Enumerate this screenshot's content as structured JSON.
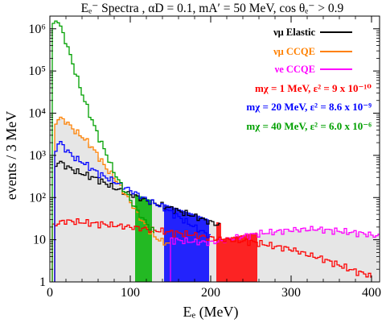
{
  "chart_data": {
    "type": "line",
    "title": "Eₑ⁻ Spectra ,  αD = 0.1,  mA′ = 50 MeV,   cos θₑ⁻ > 0.9",
    "xlabel": "Eₑ (MeV)",
    "ylabel": "events / 3 MeV",
    "xlim": [
      0,
      410
    ],
    "ylim": [
      1,
      2000000
    ],
    "yscale": "log",
    "x_ticks": [
      {
        "value": 0,
        "label": "0"
      },
      {
        "value": 100,
        "label": "100"
      },
      {
        "value": 200,
        "label": "200"
      },
      {
        "value": 300,
        "label": "300"
      },
      {
        "value": 400,
        "label": "400"
      }
    ],
    "y_ticks": [
      {
        "value": 1,
        "label": "1"
      },
      {
        "value": 10,
        "label": "10"
      },
      {
        "value": 100,
        "label": "10²"
      },
      {
        "value": 1000,
        "label": "10³"
      },
      {
        "value": 10000,
        "label": "10⁴"
      },
      {
        "value": 100000,
        "label": "10⁵"
      },
      {
        "value": 1000000,
        "label": "10⁶"
      }
    ],
    "background_series": [
      {
        "name": "νμ Elastic",
        "color": "#000000",
        "x": [
          6,
          9,
          12,
          15,
          20,
          30,
          40,
          50,
          60,
          80,
          100,
          120,
          140,
          160,
          180,
          200,
          212
        ],
        "values": [
          500,
          700,
          700,
          650,
          560,
          440,
          370,
          320,
          270,
          170,
          120,
          85,
          65,
          48,
          36,
          26,
          22
        ]
      },
      {
        "name": "νμ CCQE",
        "color": "#ff8000",
        "x": [
          6,
          9,
          12,
          15,
          20,
          30,
          40,
          50,
          60,
          70,
          80,
          90,
          100,
          110,
          120,
          130,
          140,
          150
        ],
        "values": [
          5000,
          7000,
          8000,
          7000,
          6500,
          4000,
          2800,
          1800,
          1000,
          500,
          300,
          160,
          80,
          40,
          20,
          12,
          9,
          8
        ]
      },
      {
        "name": "νe CCQE",
        "color": "#ff00ff",
        "x": [
          150,
          180,
          200,
          230,
          260,
          300,
          330,
          360,
          390,
          410
        ],
        "values": [
          10,
          9,
          8.5,
          11,
          14,
          17,
          18,
          16,
          14,
          12
        ]
      }
    ],
    "signal_series": [
      {
        "name": "mχ = 1 MeV,   ε² = 9 x 10⁻¹⁰",
        "color": "#ff0000",
        "fill": "#ff0000",
        "fill_range": [
          207,
          258
        ],
        "x": [
          3,
          10,
          20,
          40,
          60,
          80,
          100,
          120,
          150,
          180,
          200,
          220,
          250,
          280,
          300,
          320,
          340,
          360,
          380,
          395,
          400
        ],
        "values": [
          20,
          25,
          28,
          26,
          24,
          22,
          20,
          18,
          15,
          13,
          11,
          10,
          9,
          7,
          6,
          4.5,
          3.5,
          2.5,
          1.8,
          1.5,
          1.3
        ]
      },
      {
        "name": "mχ = 20 MeV,  ε² = 8.6 x 10⁻⁹",
        "color": "#0000ff",
        "fill": "#0000ff",
        "fill_range": [
          142,
          198
        ],
        "x": [
          6,
          9,
          12,
          15,
          20,
          30,
          40,
          50,
          60,
          80,
          100,
          120,
          140,
          160,
          180,
          200
        ],
        "values": [
          1000,
          1800,
          2200,
          1800,
          1400,
          900,
          700,
          520,
          380,
          240,
          150,
          90,
          60,
          35,
          20,
          12
        ]
      },
      {
        "name": "mχ = 40 MeV,  ε² = 6.0 x 10⁻⁶",
        "color": "#00a000",
        "fill": "#00b000",
        "fill_range": [
          106,
          127
        ],
        "x": [
          3,
          6,
          9,
          12,
          15,
          20,
          25,
          30,
          35,
          40,
          50,
          60,
          70,
          80,
          90,
          100,
          110,
          120,
          130
        ],
        "values": [
          900000,
          1600000,
          1700000,
          1300000,
          900000,
          500000,
          250000,
          120000,
          60000,
          30000,
          9000,
          3000,
          1100,
          400,
          180,
          90,
          45,
          25,
          15
        ]
      }
    ],
    "grid": false,
    "legend_position": "top-right",
    "legend": [
      {
        "text": "νμ Elastic",
        "color": "#000000",
        "line": true
      },
      {
        "text": "νμ CCQE",
        "color": "#ff8000",
        "line": true
      },
      {
        "text": "νe CCQE",
        "color": "#ff00ff",
        "line": true
      },
      {
        "text": "mχ = 1 MeV,   ε² = 9 x 10⁻¹⁰",
        "color": "#ff0000",
        "line": false
      },
      {
        "text": "mχ = 20 MeV,  ε² = 8.6 x 10⁻⁹",
        "color": "#0000ff",
        "line": false
      },
      {
        "text": "mχ = 40 MeV,  ε² = 6.0 x 10⁻⁶",
        "color": "#00a000",
        "line": false
      }
    ]
  }
}
